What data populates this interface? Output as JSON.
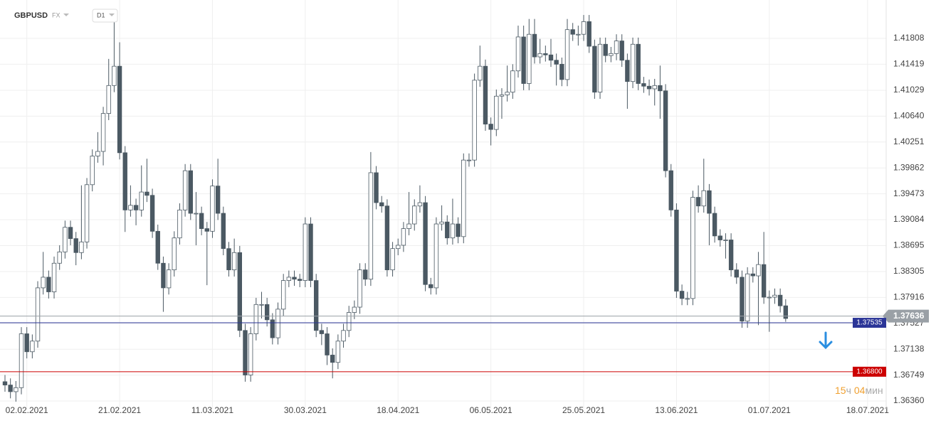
{
  "chart_data": {
    "type": "candlestick",
    "title": "GBPUSD",
    "market": "FX",
    "timeframe": "D1",
    "categories": [
      null,
      null,
      null,
      null,
      "02.02.2021",
      null,
      null,
      null,
      null,
      null,
      null,
      null,
      null,
      null,
      null,
      null,
      null,
      null,
      null,
      null,
      null,
      "21.02.2021",
      null,
      null,
      null,
      null,
      null,
      null,
      null,
      null,
      null,
      null,
      null,
      null,
      null,
      null,
      null,
      null,
      "11.03.2021",
      null,
      null,
      null,
      null,
      null,
      null,
      null,
      null,
      null,
      null,
      null,
      null,
      null,
      null,
      null,
      null,
      "30.03.2021",
      null,
      null,
      null,
      null,
      null,
      null,
      null,
      null,
      null,
      null,
      null,
      null,
      null,
      null,
      null,
      null,
      "18.04.2021",
      null,
      null,
      null,
      null,
      null,
      null,
      null,
      null,
      null,
      null,
      null,
      null,
      null,
      null,
      null,
      null,
      "06.05.2021",
      null,
      null,
      null,
      null,
      null,
      null,
      null,
      null,
      null,
      null,
      null,
      null,
      null,
      null,
      null,
      null,
      "25.05.2021",
      null,
      null,
      null,
      null,
      null,
      null,
      null,
      null,
      null,
      null,
      null,
      null,
      null,
      null,
      null,
      null,
      "13.06.2021",
      null,
      null,
      null,
      null,
      null,
      null,
      null,
      null,
      null,
      null,
      null,
      null,
      null,
      null,
      null,
      null,
      "01.07.2021",
      null,
      null,
      null,
      null,
      null,
      null,
      null,
      null,
      null,
      null,
      null,
      null,
      null,
      null,
      null,
      null,
      null,
      "18.07.2021"
    ],
    "open": [
      1.3665,
      1.366,
      1.365,
      1.3656,
      1.3737,
      1.371,
      1.3726,
      1.3806,
      1.3822,
      1.38,
      1.3843,
      1.386,
      1.3897,
      1.388,
      1.3859,
      1.3875,
      1.3961,
      1.4004,
      1.4011,
      1.4068,
      1.411,
      1.4139,
      1.4009,
      1.3923,
      1.393,
      1.3923,
      1.395,
      1.3945,
      1.3891,
      1.3843,
      1.3806,
      1.3833,
      1.3881,
      1.3923,
      1.3982,
      1.3918,
      1.3918,
      1.3895,
      1.3891,
      1.3959,
      1.3918,
      1.3865,
      1.3833,
      1.3859,
      1.3742,
      1.3675,
      1.3737,
      1.3781,
      1.3781,
      1.3758,
      1.3731,
      1.3774,
      1.3817,
      1.3822,
      1.3819,
      1.3817,
      1.3902,
      1.3817,
      1.3742,
      1.3737,
      1.3705,
      1.3694,
      1.3726,
      1.3742,
      1.3769,
      1.3777,
      1.3833,
      1.3819,
      1.3979,
      1.3934,
      1.3929,
      1.3833,
      1.3865,
      1.387,
      1.3895,
      1.3902,
      1.3929,
      1.3934,
      1.3811,
      1.3806,
      1.3902,
      1.3905,
      1.3881,
      1.3902,
      1.3883,
      1.3998,
      1.3998,
      1.4118,
      1.4139,
      1.4052,
      1.4044,
      1.4094,
      1.4096,
      1.41,
      1.4132,
      1.4183,
      1.4113,
      1.4187,
      1.4153,
      1.4158,
      1.4156,
      1.4148,
      1.4142,
      1.4119,
      1.4194,
      1.4187,
      1.4187,
      1.4206,
      1.4169,
      1.41,
      1.4172,
      1.4155,
      1.4158,
      1.4177,
      1.4148,
      1.4116,
      1.4172,
      1.4113,
      1.4109,
      1.4105,
      1.411,
      1.4102,
      1.3982,
      1.3923,
      1.3801,
      1.379,
      1.379,
      1.3942,
      1.3929,
      1.3952,
      1.3918,
      1.3884,
      1.3878,
      1.3878,
      1.3833,
      1.3822,
      1.3756,
      1.3827,
      1.3824,
      1.3841,
      1.3792,
      1.3792,
      1.3795,
      1.3779,
      null,
      null,
      null,
      null,
      null,
      null,
      null,
      null,
      null,
      null,
      null,
      null,
      null,
      null,
      null
    ],
    "high": [
      1.3675,
      1.367,
      1.3666,
      1.3747,
      1.3747,
      1.3736,
      1.3816,
      1.386,
      1.3832,
      1.3853,
      1.387,
      1.3907,
      1.3907,
      1.389,
      1.396,
      1.3971,
      1.4014,
      1.404,
      1.4078,
      1.415,
      1.421,
      1.4175,
      1.4019,
      1.396,
      1.394,
      1.399,
      1.4,
      1.3955,
      1.3901,
      1.3853,
      1.3843,
      1.3891,
      1.3933,
      1.3992,
      1.3992,
      1.395,
      1.3928,
      1.3905,
      1.3969,
      1.4,
      1.3928,
      1.3875,
      1.388,
      1.3869,
      1.3752,
      1.3747,
      1.3791,
      1.38,
      1.3791,
      1.3768,
      1.3784,
      1.3827,
      1.3832,
      1.3832,
      1.3827,
      1.3912,
      1.3912,
      1.3827,
      1.3752,
      1.3747,
      1.3715,
      1.3736,
      1.3752,
      1.3779,
      1.3787,
      1.3843,
      1.3843,
      1.401,
      1.3989,
      1.3944,
      1.3939,
      1.3875,
      1.388,
      1.3905,
      1.395,
      1.3939,
      1.396,
      1.3944,
      1.3821,
      1.3912,
      1.393,
      1.3915,
      1.394,
      1.3912,
      1.4008,
      1.4008,
      1.4128,
      1.417,
      1.4149,
      1.4062,
      1.4104,
      1.4106,
      1.414,
      1.4142,
      1.42,
      1.42,
      1.421,
      1.421,
      1.418,
      1.417,
      1.418,
      1.4158,
      1.4152,
      1.421,
      1.4204,
      1.42,
      1.4216,
      1.4216,
      1.4179,
      1.4182,
      1.4182,
      1.4168,
      1.4187,
      1.4187,
      1.4158,
      1.4182,
      1.4182,
      1.4123,
      1.4119,
      1.412,
      1.414,
      1.4112,
      1.3992,
      1.3933,
      1.3811,
      1.38,
      1.3952,
      1.396,
      1.4,
      1.3962,
      1.3928,
      1.3894,
      1.3888,
      1.3888,
      1.3843,
      1.3832,
      1.3837,
      1.3837,
      1.386,
      1.389,
      1.3802,
      1.3805,
      1.3805,
      1.3789,
      null,
      null,
      null,
      null,
      null,
      null,
      null,
      null,
      null,
      null,
      null,
      null,
      null,
      null,
      null
    ],
    "low": [
      1.365,
      1.364,
      1.3635,
      1.3646,
      1.37,
      1.37,
      1.3716,
      1.3796,
      1.379,
      1.379,
      1.3833,
      1.385,
      1.387,
      1.384,
      1.3849,
      1.3865,
      1.3951,
      1.3994,
      1.399,
      1.4058,
      1.41,
      1.3999,
      1.389,
      1.3913,
      1.39,
      1.3913,
      1.3935,
      1.3881,
      1.3833,
      1.377,
      1.3796,
      1.3823,
      1.3871,
      1.3913,
      1.3908,
      1.387,
      1.3885,
      1.381,
      1.3881,
      1.3908,
      1.3855,
      1.3823,
      1.3823,
      1.3732,
      1.3665,
      1.3665,
      1.3727,
      1.376,
      1.3748,
      1.3721,
      1.3721,
      1.3764,
      1.3807,
      1.3809,
      1.3807,
      1.3807,
      1.3807,
      1.3732,
      1.372,
      1.369,
      1.367,
      1.3684,
      1.3716,
      1.3732,
      1.3759,
      1.3767,
      1.3809,
      1.3809,
      1.3924,
      1.3919,
      1.3823,
      1.3823,
      1.3855,
      1.386,
      1.3885,
      1.3892,
      1.3919,
      1.3801,
      1.3796,
      1.3796,
      1.3892,
      1.3871,
      1.3871,
      1.3873,
      1.3873,
      1.3988,
      1.3988,
      1.4108,
      1.4042,
      1.402,
      1.4034,
      1.406,
      1.4086,
      1.409,
      1.4122,
      1.4103,
      1.4103,
      1.4143,
      1.4143,
      1.4146,
      1.4138,
      1.411,
      1.4109,
      1.4109,
      1.4177,
      1.417,
      1.4177,
      1.4159,
      1.409,
      1.409,
      1.4145,
      1.4145,
      1.4148,
      1.4138,
      1.4075,
      1.4106,
      1.4103,
      1.4099,
      1.4095,
      1.408,
      1.406,
      1.3972,
      1.3913,
      1.3791,
      1.378,
      1.378,
      1.378,
      1.3919,
      1.3919,
      1.387,
      1.3874,
      1.3868,
      1.385,
      1.3823,
      1.3812,
      1.3746,
      1.3746,
      1.3814,
      1.375,
      1.3782,
      1.374,
      1.3782,
      1.3769,
      1.3755,
      null,
      null,
      null,
      null,
      null,
      null,
      null,
      null,
      null,
      null,
      null,
      null,
      null,
      null,
      null
    ],
    "close": [
      1.366,
      1.365,
      1.3656,
      1.3737,
      1.371,
      1.3726,
      1.3806,
      1.3822,
      1.38,
      1.3843,
      1.386,
      1.3897,
      1.388,
      1.3859,
      1.3875,
      1.3961,
      1.4004,
      1.4011,
      1.4068,
      1.411,
      1.4139,
      1.4009,
      1.3923,
      1.393,
      1.3923,
      1.395,
      1.3945,
      1.3891,
      1.3843,
      1.3806,
      1.3833,
      1.3881,
      1.3923,
      1.3982,
      1.3918,
      1.3918,
      1.3895,
      1.3891,
      1.3959,
      1.3918,
      1.3865,
      1.3833,
      1.3859,
      1.3742,
      1.3675,
      1.3737,
      1.3781,
      1.3781,
      1.3758,
      1.3731,
      1.3774,
      1.3817,
      1.3822,
      1.3819,
      1.3817,
      1.3902,
      1.3817,
      1.3742,
      1.3737,
      1.3705,
      1.3694,
      1.3726,
      1.3742,
      1.3769,
      1.3777,
      1.3833,
      1.3819,
      1.3979,
      1.3934,
      1.3929,
      1.3833,
      1.3865,
      1.387,
      1.3895,
      1.3902,
      1.3929,
      1.3934,
      1.3811,
      1.3806,
      1.3902,
      1.3905,
      1.3881,
      1.3902,
      1.3883,
      1.3998,
      1.3998,
      1.4118,
      1.4139,
      1.4052,
      1.4044,
      1.4094,
      1.4096,
      1.41,
      1.4132,
      1.4183,
      1.4113,
      1.4187,
      1.4153,
      1.4158,
      1.4156,
      1.4148,
      1.4142,
      1.4119,
      1.4194,
      1.4187,
      1.4187,
      1.4206,
      1.4169,
      1.41,
      1.4172,
      1.4155,
      1.4158,
      1.4177,
      1.4148,
      1.4116,
      1.4172,
      1.4113,
      1.4109,
      1.4105,
      1.411,
      1.4102,
      1.3982,
      1.3923,
      1.3801,
      1.379,
      1.379,
      1.3942,
      1.3929,
      1.3952,
      1.3918,
      1.3884,
      1.3878,
      1.3878,
      1.3833,
      1.3822,
      1.3756,
      1.3827,
      1.3824,
      1.3841,
      1.3792,
      1.3792,
      1.3795,
      1.3779,
      1.376,
      null,
      null,
      null,
      null,
      null,
      null,
      null,
      null,
      null,
      null,
      null,
      null,
      null,
      null,
      null
    ],
    "up_color": "#ffffff",
    "down_color": "#4b5963",
    "wick_color": "#4b5963",
    "ylim": [
      1.36243,
      1.42385
    ],
    "yticks": [
      1.41808,
      1.41419,
      1.41029,
      {
        "value": 1.4064,
        "label": "1.40640"
      },
      1.40251,
      1.39862,
      1.39473,
      1.39084,
      1.38695,
      1.38305,
      1.37916,
      1.37527,
      1.37138,
      1.36749,
      {
        "value": 1.3636,
        "label": "1.36360"
      }
    ],
    "grid": true,
    "hlines": [
      {
        "value": 1.37636,
        "color": "#9aa0a6"
      },
      {
        "value": 1.37535,
        "color": "#2b3597"
      },
      {
        "value": 1.368,
        "label": "1.36800",
        "color": "#cc0000"
      }
    ],
    "timer": {
      "hours": "15",
      "hours_unit": "ч",
      "minutes": "04",
      "minutes_unit": "мин"
    }
  }
}
